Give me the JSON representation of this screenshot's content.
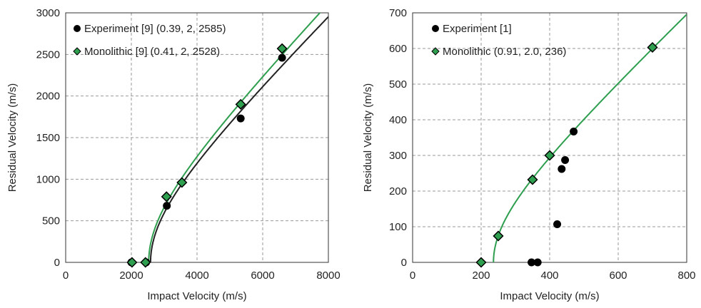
{
  "chart_data": [
    {
      "type": "scatter",
      "xlabel": "Impact Velocity (m/s)",
      "ylabel": "Residual Velocity (m/s)",
      "xlim": [
        0,
        8000
      ],
      "ylim": [
        0,
        3000
      ],
      "xticks": [
        "0",
        "2000",
        "4000",
        "6000",
        "8000"
      ],
      "yticks": [
        "0",
        "500",
        "1000",
        "1500",
        "2000",
        "2500",
        "3000"
      ],
      "grid": "dashed",
      "legend_position": "top-left",
      "series": [
        {
          "name": "Experiment [9] (0.39, 2, 2585)",
          "marker": "circle",
          "color": "#000000",
          "points": [
            [
              2000,
              0
            ],
            [
              2450,
              0
            ],
            [
              3080,
              680
            ],
            [
              5330,
              1730
            ],
            [
              6590,
              2460
            ]
          ],
          "fit": {
            "a": 0.39,
            "p": 2,
            "vbl": 2585,
            "color": "#222222"
          }
        },
        {
          "name": "Monolithic [9] (0.41, 2, 2528)",
          "marker": "diamond",
          "color": "#2e9e4f",
          "points": [
            [
              2020,
              0
            ],
            [
              2430,
              0
            ],
            [
              3070,
              790
            ],
            [
              3540,
              960
            ],
            [
              5330,
              1900
            ],
            [
              6590,
              2570
            ]
          ],
          "fit": {
            "a": 0.41,
            "p": 2,
            "vbl": 2528,
            "color": "#2e9e4f"
          }
        }
      ]
    },
    {
      "type": "scatter",
      "xlabel": "Impact Velocity (m/s)",
      "ylabel": "Residual Velocity (m/s)",
      "xlim": [
        0,
        800
      ],
      "ylim": [
        0,
        700
      ],
      "xticks": [
        "0",
        "200",
        "400",
        "600",
        "800"
      ],
      "yticks": [
        "0",
        "100",
        "200",
        "300",
        "400",
        "500",
        "600",
        "700"
      ],
      "grid": "dashed",
      "legend_position": "top-left",
      "series": [
        {
          "name": "Experiment [1]",
          "marker": "circle",
          "color": "#000000",
          "points": [
            [
              347,
              0
            ],
            [
              365,
              0
            ],
            [
              422,
              107
            ],
            [
              435,
              262
            ],
            [
              445,
              287
            ],
            [
              470,
              367
            ]
          ]
        },
        {
          "name": "Monolithic (0.91, 2.0, 236)",
          "marker": "diamond",
          "color": "#2e9e4f",
          "points": [
            [
              200,
              0
            ],
            [
              250,
              74
            ],
            [
              350,
              232
            ],
            [
              400,
              300
            ],
            [
              700,
              603
            ]
          ],
          "fit": {
            "a": 0.91,
            "p": 2.0,
            "vbl": 236,
            "color": "#2e9e4f"
          }
        }
      ]
    }
  ]
}
